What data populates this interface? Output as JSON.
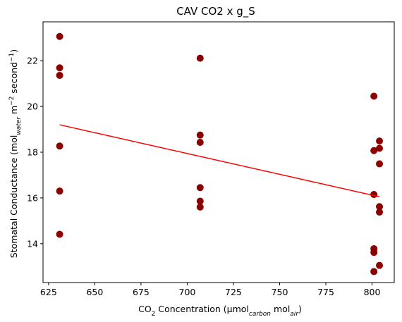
{
  "chart_data": {
    "type": "scatter",
    "title": "CAV CO2 x g_S",
    "xlabel": {
      "prefix": "CO",
      "sub1": "2",
      "middle": " Concentration (μmol",
      "sub2": "carbon",
      "suffix1": " mol",
      "sub3": "air",
      "suffix2": ")"
    },
    "ylabel": {
      "prefix": "Stomatal Conductance (mol",
      "sub1": "water",
      "middle": " m",
      "sup1": "−2",
      "middle2": " second",
      "sup2": "−1",
      "suffix": ")"
    },
    "xlim": [
      622,
      812
    ],
    "ylim": [
      12.3,
      23.7
    ],
    "xticks": [
      625,
      650,
      675,
      700,
      725,
      750,
      775,
      800
    ],
    "yticks": [
      14,
      16,
      18,
      20,
      22
    ],
    "point_color": "#8b0000",
    "line_color": "#ff0000",
    "points": [
      {
        "x": 631,
        "y": 23.06
      },
      {
        "x": 631,
        "y": 21.69
      },
      {
        "x": 631,
        "y": 21.36
      },
      {
        "x": 631,
        "y": 18.27
      },
      {
        "x": 631,
        "y": 16.3
      },
      {
        "x": 631,
        "y": 14.41
      },
      {
        "x": 707,
        "y": 22.11
      },
      {
        "x": 707,
        "y": 18.75
      },
      {
        "x": 707,
        "y": 18.43
      },
      {
        "x": 707,
        "y": 16.45
      },
      {
        "x": 707,
        "y": 15.86
      },
      {
        "x": 707,
        "y": 15.6
      },
      {
        "x": 801,
        "y": 20.45
      },
      {
        "x": 801,
        "y": 18.07
      },
      {
        "x": 801,
        "y": 16.15
      },
      {
        "x": 801,
        "y": 13.78
      },
      {
        "x": 801,
        "y": 13.62
      },
      {
        "x": 801,
        "y": 12.78
      },
      {
        "x": 804,
        "y": 18.49
      },
      {
        "x": 804,
        "y": 18.17
      },
      {
        "x": 804,
        "y": 17.49
      },
      {
        "x": 804,
        "y": 15.62
      },
      {
        "x": 804,
        "y": 15.38
      },
      {
        "x": 804,
        "y": 13.05
      }
    ],
    "fit_line": {
      "x": [
        631,
        804
      ],
      "y": [
        19.2,
        16.05
      ]
    },
    "grid": false,
    "legend": "none"
  }
}
